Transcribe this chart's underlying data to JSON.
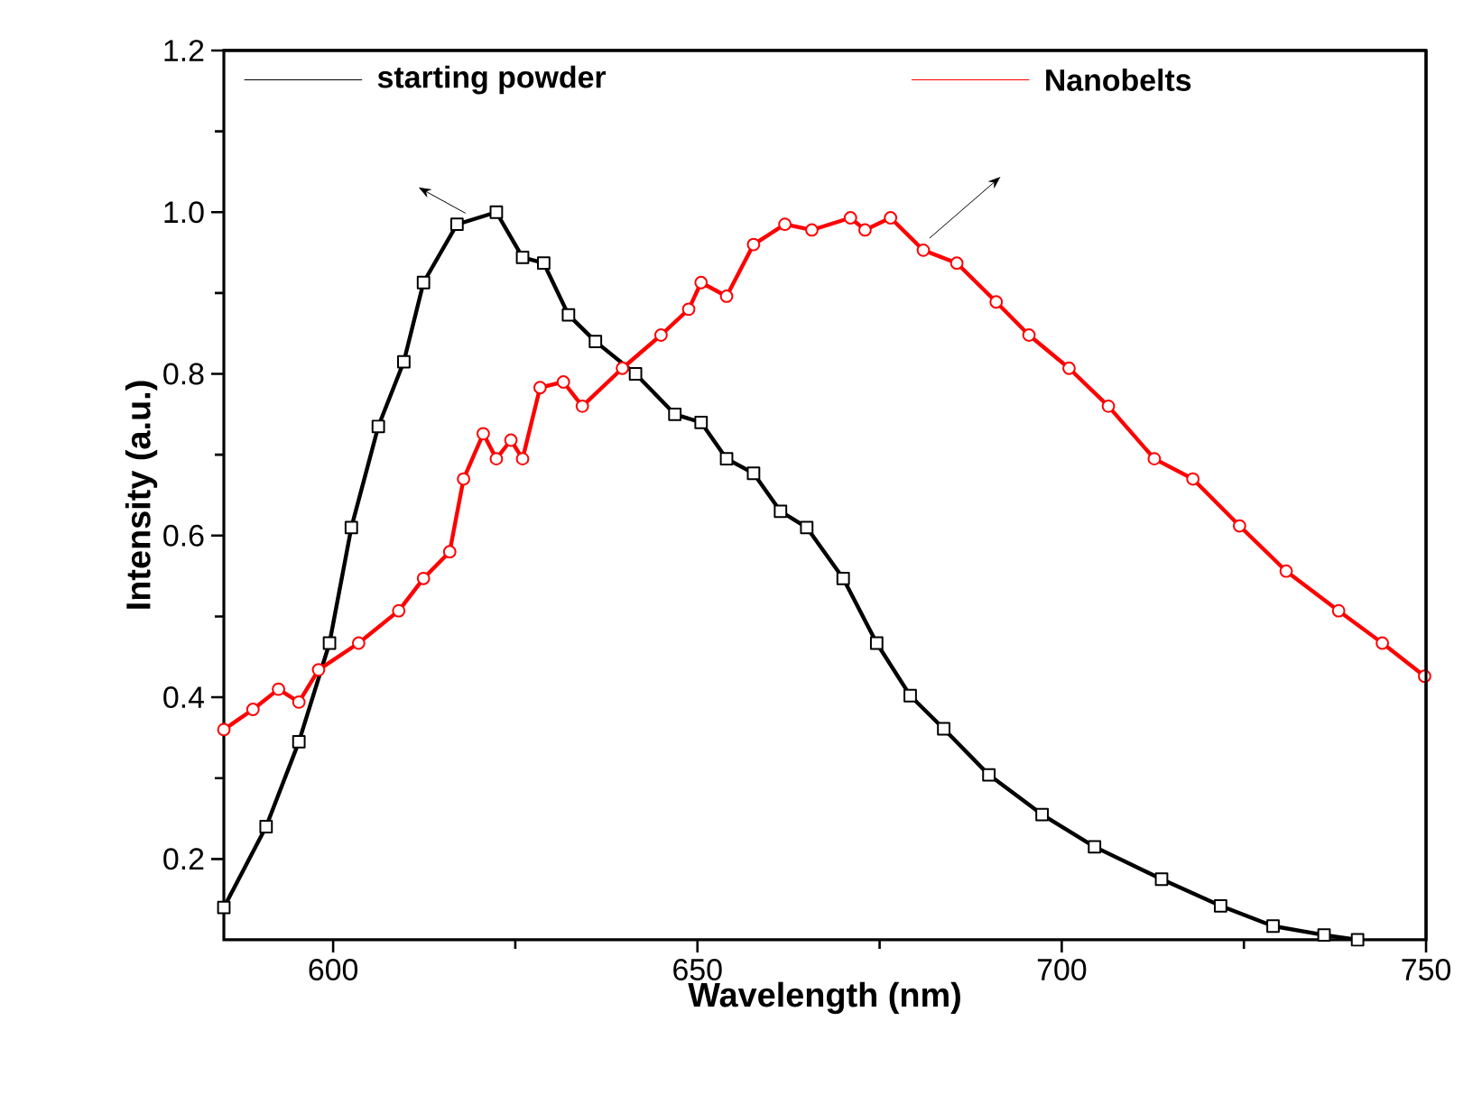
{
  "chart_data": {
    "type": "line",
    "xlabel": "Wavelength (nm)",
    "ylabel": "Intensity (a.u.)",
    "xlim": [
      585,
      750
    ],
    "ylim": [
      0.1,
      1.2
    ],
    "xticks": [
      600,
      650,
      700,
      750
    ],
    "yticks": [
      0.2,
      0.4,
      0.6,
      0.8,
      {
        "value": 1,
        "label": "1.0"
      },
      1.2
    ],
    "legend": "top",
    "grid": false,
    "series": [
      {
        "name": "starting powder",
        "color": "#000000",
        "marker": "square",
        "x": [
          585,
          590.8,
          595.3,
          599.5,
          602.5,
          606.2,
          609.7,
          612.4,
          617,
          622.4,
          626,
          628.9,
          632.3,
          636,
          641.5,
          646.9,
          650.5,
          654,
          657.7,
          661.4,
          665,
          670,
          674.6,
          679.2,
          683.8,
          690,
          697.3,
          704.5,
          713.7,
          721.8,
          729,
          736,
          740.6
        ],
        "values": [
          0.14,
          0.24,
          0.345,
          0.467,
          0.61,
          0.735,
          0.815,
          0.913,
          0.985,
          1.0,
          0.944,
          0.937,
          0.873,
          0.84,
          0.8,
          0.75,
          0.74,
          0.695,
          0.677,
          0.63,
          0.61,
          0.547,
          0.467,
          0.402,
          0.361,
          0.304,
          0.255,
          0.215,
          0.175,
          0.142,
          0.117,
          0.106,
          0.1
        ]
      },
      {
        "name": "Nanobelts",
        "color": "#ff0000",
        "marker": "circle",
        "x": [
          585,
          589,
          592.5,
          595.3,
          598,
          603.5,
          609,
          612.4,
          616,
          617.9,
          620.6,
          622.4,
          624.4,
          626,
          628.4,
          631.6,
          634.2,
          639.7,
          645,
          648.8,
          650.5,
          654,
          657.7,
          662,
          665.7,
          671,
          673,
          676.5,
          681,
          685.6,
          691,
          695.5,
          701,
          706.4,
          712.7,
          718,
          724.4,
          730.8,
          738,
          744,
          749.8
        ],
        "values": [
          0.36,
          0.385,
          0.41,
          0.394,
          0.434,
          0.467,
          0.507,
          0.547,
          0.58,
          0.67,
          0.726,
          0.695,
          0.718,
          0.695,
          0.783,
          0.79,
          0.76,
          0.807,
          0.848,
          0.88,
          0.913,
          0.896,
          0.96,
          0.985,
          0.978,
          0.993,
          0.978,
          0.993,
          0.953,
          0.937,
          0.889,
          0.848,
          0.807,
          0.76,
          0.695,
          0.67,
          0.612,
          0.556,
          0.507,
          0.467,
          0.426
        ]
      }
    ]
  }
}
